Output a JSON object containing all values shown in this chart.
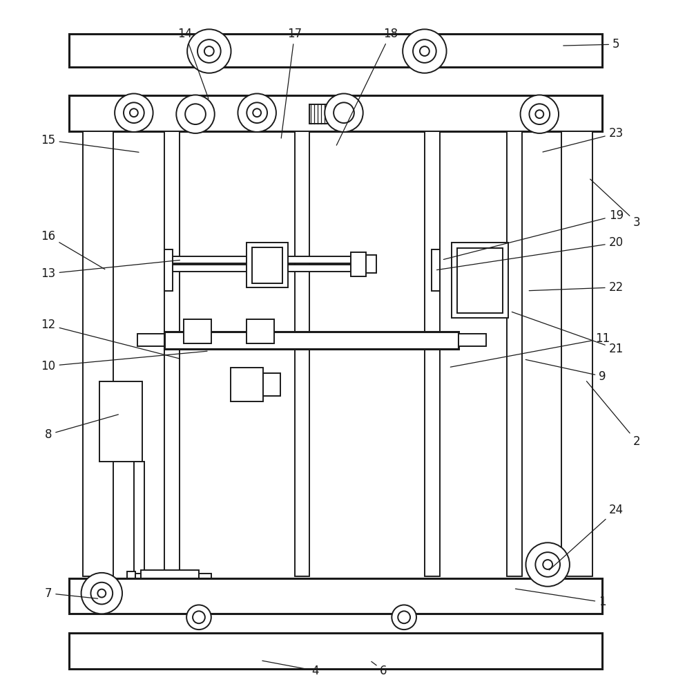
{
  "bg_color": "#ffffff",
  "lc": "#1a1a1a",
  "lw": 1.4,
  "lwt": 2.2,
  "annotations": [
    [
      "1",
      [
        0.88,
        0.875
      ],
      [
        0.75,
        0.855
      ]
    ],
    [
      "2",
      [
        0.93,
        0.64
      ],
      [
        0.855,
        0.55
      ]
    ],
    [
      "3",
      [
        0.93,
        0.32
      ],
      [
        0.86,
        0.255
      ]
    ],
    [
      "4",
      [
        0.46,
        0.975
      ],
      [
        0.38,
        0.96
      ]
    ],
    [
      "5",
      [
        0.9,
        0.06
      ],
      [
        0.82,
        0.062
      ]
    ],
    [
      "6",
      [
        0.56,
        0.975
      ],
      [
        0.54,
        0.96
      ]
    ],
    [
      "7",
      [
        0.07,
        0.862
      ],
      [
        0.145,
        0.87
      ]
    ],
    [
      "8",
      [
        0.07,
        0.63
      ],
      [
        0.175,
        0.6
      ]
    ],
    [
      "9",
      [
        0.88,
        0.545
      ],
      [
        0.765,
        0.52
      ]
    ],
    [
      "10",
      [
        0.07,
        0.53
      ],
      [
        0.305,
        0.508
      ]
    ],
    [
      "11",
      [
        0.88,
        0.49
      ],
      [
        0.655,
        0.532
      ]
    ],
    [
      "12",
      [
        0.07,
        0.47
      ],
      [
        0.265,
        0.52
      ]
    ],
    [
      "13",
      [
        0.07,
        0.395
      ],
      [
        0.265,
        0.375
      ]
    ],
    [
      "14",
      [
        0.27,
        0.045
      ],
      [
        0.305,
        0.142
      ]
    ],
    [
      "15",
      [
        0.07,
        0.2
      ],
      [
        0.205,
        0.218
      ]
    ],
    [
      "16",
      [
        0.07,
        0.34
      ],
      [
        0.155,
        0.39
      ]
    ],
    [
      "17",
      [
        0.43,
        0.045
      ],
      [
        0.41,
        0.2
      ]
    ],
    [
      "18",
      [
        0.57,
        0.045
      ],
      [
        0.49,
        0.21
      ]
    ],
    [
      "19",
      [
        0.9,
        0.31
      ],
      [
        0.645,
        0.375
      ]
    ],
    [
      "20",
      [
        0.9,
        0.35
      ],
      [
        0.635,
        0.39
      ]
    ],
    [
      "21",
      [
        0.9,
        0.505
      ],
      [
        0.745,
        0.45
      ]
    ],
    [
      "22",
      [
        0.9,
        0.415
      ],
      [
        0.77,
        0.42
      ]
    ],
    [
      "23",
      [
        0.9,
        0.19
      ],
      [
        0.79,
        0.218
      ]
    ],
    [
      "24",
      [
        0.9,
        0.74
      ],
      [
        0.8,
        0.83
      ]
    ]
  ]
}
